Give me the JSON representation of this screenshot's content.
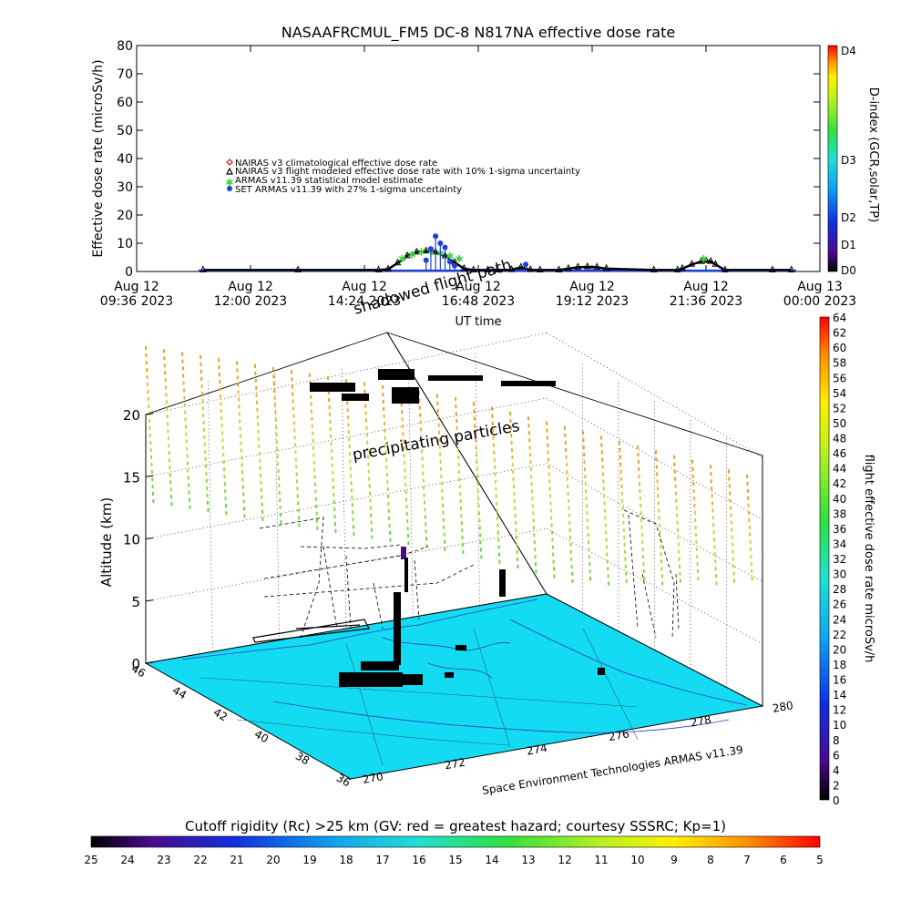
{
  "title": "NASAAFRCMUL_FM5 DC-8   N817NA effective dose rate",
  "colors": {
    "nairas_clim": "#d42a1a",
    "nairas_flight": "#000000",
    "armas_model": "#3ed23e",
    "set_armas": "#1f3fdc",
    "map_fill": "#13dcf2",
    "flight_track": "#000000"
  },
  "chart_data": [
    {
      "type": "scatter",
      "ylabel": "Effective dose rate (microSv/h)",
      "xlabel": "UT time",
      "ylim": [
        0,
        80
      ],
      "yticks": [
        0,
        10,
        20,
        30,
        40,
        50,
        60,
        70,
        80
      ],
      "xticks": [
        {
          "top": "Aug 12",
          "bottom": "09:36 2023"
        },
        {
          "top": "Aug 12",
          "bottom": "12:00 2023"
        },
        {
          "top": "Aug 12",
          "bottom": "14:24 2023"
        },
        {
          "top": "Aug 12",
          "bottom": "16:48 2023"
        },
        {
          "top": "Aug 12",
          "bottom": "19:12 2023"
        },
        {
          "top": "Aug 12",
          "bottom": "21:36 2023"
        },
        {
          "top": "Aug 13",
          "bottom": "00:00 2023"
        }
      ],
      "xrange_hours": [
        9.6,
        24.0
      ],
      "legend": [
        "NAIRAS v3 climatological effective dose rate",
        "NAIRAS v3 flight modeled effective dose rate with 10% 1-sigma uncertainty",
        "ARMAS v11.39 statistical model estimate",
        "SET ARMAS v11.39 with 27% 1-sigma uncertainty"
      ],
      "legend_placement": "upper-left",
      "series": [
        {
          "name": "NAIRAS v3 flight modeled effective dose rate with 10% 1-sigma uncertainty",
          "x_hours": [
            11.0,
            13.0,
            14.7,
            14.9,
            15.1,
            15.3,
            15.5,
            15.7,
            15.9,
            16.1,
            16.3,
            16.5,
            16.7,
            17.0,
            17.2,
            17.5,
            17.7,
            17.9,
            18.1,
            18.5,
            18.7,
            18.9,
            19.1,
            19.3,
            19.5,
            20.5,
            21.0,
            21.1,
            21.3,
            21.5,
            21.6,
            21.7,
            21.8,
            22.0,
            23.0,
            23.4
          ],
          "y": [
            0.5,
            0.5,
            0.5,
            0.8,
            3.0,
            5.5,
            6.8,
            7.2,
            6.8,
            5.5,
            3.2,
            1.0,
            0.5,
            0.5,
            0.5,
            0.6,
            1.5,
            0.6,
            0.5,
            0.5,
            1.0,
            1.5,
            1.6,
            1.5,
            1.0,
            0.5,
            0.5,
            1.0,
            2.5,
            3.5,
            3.8,
            3.5,
            2.5,
            0.5,
            0.5,
            0.5
          ]
        },
        {
          "name": "ARMAS v11.39 statistical model estimate",
          "x_hours": [
            15.2,
            15.4,
            15.6,
            15.8,
            16.0,
            16.2,
            16.4,
            21.55
          ],
          "y": [
            4.5,
            6.0,
            7.0,
            7.0,
            6.5,
            5.5,
            4.5,
            4.5
          ]
        },
        {
          "name": "SET ARMAS v11.39 with 27% 1-sigma uncertainty",
          "x_hours": [
            15.7,
            15.8,
            15.9,
            16.0,
            16.1,
            16.2,
            16.3,
            17.8
          ],
          "y": [
            4.0,
            8.0,
            12.5,
            10.0,
            8.5,
            3.5,
            2.0,
            2.5
          ]
        }
      ],
      "colorbar": {
        "label": "D-index (GCR,solar,TP)",
        "ticks": [
          "D4",
          "D3",
          "D2",
          "D1",
          "D0"
        ]
      }
    },
    {
      "type": "scatter",
      "zlabel": "Altitude (km)",
      "zticks": [
        0,
        5,
        10,
        15,
        20
      ],
      "yticks": [
        46,
        44,
        42,
        40,
        38,
        36
      ],
      "xticks": [
        270,
        272,
        274,
        276,
        278,
        280
      ],
      "annotations": [
        "shadowed flight path",
        "precipitating particles"
      ],
      "credit": "Space Environment Technologies ARMAS v11.39",
      "colorbar": {
        "label": "flight effective dose rate microSv/h",
        "range": [
          0,
          64
        ],
        "ticks": [
          0,
          2,
          4,
          6,
          8,
          10,
          12,
          14,
          16,
          18,
          20,
          22,
          24,
          26,
          28,
          30,
          32,
          34,
          36,
          38,
          40,
          42,
          44,
          46,
          48,
          50,
          52,
          54,
          56,
          58,
          60,
          62,
          64
        ]
      }
    },
    {
      "type": "heatmap",
      "title": "Cutoff rigidity (Rc) >25 km (GV: red = greatest hazard; courtesy SSSRC; Kp=1)",
      "ticks": [
        25,
        24,
        23,
        22,
        21,
        20,
        19,
        18,
        17,
        16,
        15,
        14,
        13,
        12,
        11,
        10,
        9,
        8,
        7,
        6,
        5
      ]
    }
  ]
}
